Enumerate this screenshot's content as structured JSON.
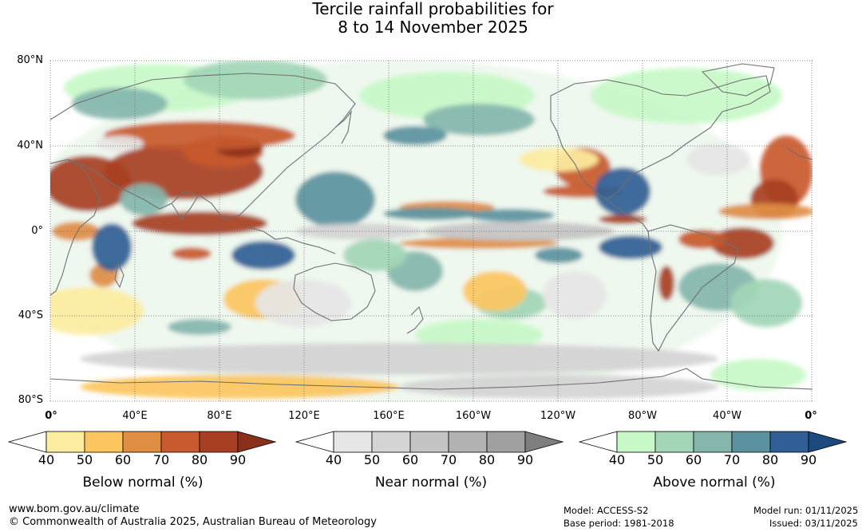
{
  "title_line1": "Tercile rainfall probabilities for",
  "title_line2": "8 to 14 November 2025",
  "chart_data": {
    "type": "heatmap",
    "title": "Tercile rainfall probabilities for 8 to 14 November 2025",
    "xlabel": "",
    "ylabel": "",
    "x_ticks": [
      "0°",
      "40°E",
      "80°E",
      "120°E",
      "160°E",
      "160°W",
      "120°W",
      "80°W",
      "40°W",
      "0°"
    ],
    "y_ticks": [
      "80°N",
      "40°N",
      "0°",
      "40°S",
      "80°S"
    ],
    "xlim": [
      0,
      360
    ],
    "ylim": [
      -80,
      80
    ],
    "legends": [
      {
        "name": "Below normal (%)",
        "ticks": [
          "40",
          "50",
          "60",
          "70",
          "80",
          "90"
        ],
        "colors": [
          "#ffffff",
          "#fdeda0",
          "#fcc560",
          "#e08e44",
          "#c9592e",
          "#a83f22",
          "#8a2f1c"
        ]
      },
      {
        "name": "Near normal (%)",
        "ticks": [
          "40",
          "50",
          "60",
          "70",
          "80",
          "90"
        ],
        "colors": [
          "#ffffff",
          "#e6e6e6",
          "#d4d4d4",
          "#c4c4c4",
          "#b2b2b2",
          "#a0a0a0",
          "#7e7e7e"
        ]
      },
      {
        "name": "Above normal (%)",
        "ticks": [
          "40",
          "50",
          "60",
          "70",
          "80",
          "90"
        ],
        "colors": [
          "#ffffff",
          "#c8f8c8",
          "#a2d6b6",
          "#84b6ae",
          "#5b92a0",
          "#2f5f96",
          "#1a4a7e"
        ]
      }
    ]
  },
  "footer": {
    "website": "www.bom.gov.au/climate",
    "copyright": "© Commonwealth of Australia 2025, Australian Bureau of Meteorology",
    "model": "Model: ACCESS-S2",
    "base_period": "Base period: 1981-2018",
    "model_run": "Model run: 01/11/2025",
    "issued": "Issued: 03/11/2025"
  }
}
